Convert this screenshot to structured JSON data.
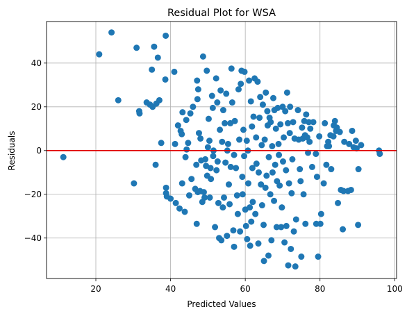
{
  "chart_data": {
    "type": "scatter",
    "title": "Residual Plot for WSA",
    "xlabel": "Predicted Values",
    "ylabel": "Residuals",
    "xlim": [
      6.8,
      100.5
    ],
    "ylim": [
      -58.5,
      59
    ],
    "xticks": [
      20,
      40,
      60,
      80,
      100
    ],
    "yticks": [
      -40,
      -20,
      0,
      20,
      40
    ],
    "grid": true,
    "legend": "none",
    "series_color": "#1f77b4",
    "reference_line": {
      "y": 0,
      "color": "#e00000"
    },
    "points": [
      [
        11.3,
        -3
      ],
      [
        20.9,
        44
      ],
      [
        24.2,
        54
      ],
      [
        26,
        23
      ],
      [
        30.2,
        -15
      ],
      [
        30.9,
        47
      ],
      [
        31.6,
        18
      ],
      [
        31.7,
        17
      ],
      [
        33.6,
        22
      ],
      [
        34.5,
        21
      ],
      [
        35,
        37
      ],
      [
        35.2,
        20
      ],
      [
        35.6,
        47.5
      ],
      [
        36,
        -6.5
      ],
      [
        36.2,
        21.5
      ],
      [
        36.6,
        42.5
      ],
      [
        37,
        23
      ],
      [
        37.5,
        3.5
      ],
      [
        38.6,
        32.5
      ],
      [
        38.7,
        52.5
      ],
      [
        38.8,
        -17
      ],
      [
        38.8,
        -19.5
      ],
      [
        39,
        -21
      ],
      [
        40,
        -22
      ],
      [
        41,
        36
      ],
      [
        41.2,
        3
      ],
      [
        41.4,
        -24
      ],
      [
        42,
        11.5
      ],
      [
        42.4,
        -26.5
      ],
      [
        42.7,
        9
      ],
      [
        43,
        7.5
      ],
      [
        43.1,
        -15
      ],
      [
        43.2,
        17.5
      ],
      [
        43.8,
        -28
      ],
      [
        44,
        -3
      ],
      [
        44.2,
        14
      ],
      [
        44.3,
        0.5
      ],
      [
        44.7,
        3.5
      ],
      [
        45,
        -20.5
      ],
      [
        45.3,
        17
      ],
      [
        45.6,
        -13
      ],
      [
        46,
        20
      ],
      [
        46.6,
        -17.5
      ],
      [
        46.9,
        -6.5
      ],
      [
        47,
        -33.5
      ],
      [
        47.1,
        32
      ],
      [
        47.2,
        23.5
      ],
      [
        47.3,
        -19
      ],
      [
        47.4,
        28
      ],
      [
        47.6,
        8
      ],
      [
        47.9,
        -18.5
      ],
      [
        48,
        5.5
      ],
      [
        48.2,
        -4.5
      ],
      [
        48.5,
        -23.5
      ],
      [
        48.7,
        43
      ],
      [
        48.9,
        -19
      ],
      [
        49.1,
        -21.5
      ],
      [
        49.3,
        -4
      ],
      [
        49.5,
        -7
      ],
      [
        49.7,
        36.5
      ],
      [
        49.8,
        -11.5
      ],
      [
        50,
        1.5
      ],
      [
        50.2,
        14.5
      ],
      [
        50.4,
        4.5
      ],
      [
        50.5,
        -21.5
      ],
      [
        50.7,
        -8
      ],
      [
        50.8,
        -13
      ],
      [
        51.1,
        25
      ],
      [
        51.3,
        19.5
      ],
      [
        51.4,
        -2.5
      ],
      [
        51.5,
        0
      ],
      [
        51.9,
        -35
      ],
      [
        52.2,
        33
      ],
      [
        52.3,
        -9
      ],
      [
        52.5,
        22
      ],
      [
        52.6,
        -5
      ],
      [
        52.8,
        -24
      ],
      [
        53,
        -40
      ],
      [
        53.2,
        9.5
      ],
      [
        53.4,
        27.5
      ],
      [
        53.6,
        -41
      ],
      [
        53.8,
        4
      ],
      [
        54,
        -26
      ],
      [
        54.1,
        18.5
      ],
      [
        54.3,
        -21.5
      ],
      [
        54.5,
        12.5
      ],
      [
        54.7,
        -5.5
      ],
      [
        54.9,
        26
      ],
      [
        55.1,
        -39
      ],
      [
        55.2,
        0
      ],
      [
        55.4,
        3
      ],
      [
        55.6,
        -15.5
      ],
      [
        55.8,
        -24.5
      ],
      [
        56,
        12.5
      ],
      [
        56.1,
        -7.5
      ],
      [
        56.3,
        37.5
      ],
      [
        56.5,
        22
      ],
      [
        56.8,
        -36.5
      ],
      [
        57,
        -2
      ],
      [
        57,
        -44
      ],
      [
        57.2,
        13.5
      ],
      [
        57.5,
        -8
      ],
      [
        57.8,
        -20.5
      ],
      [
        58,
        -29
      ],
      [
        58.2,
        28
      ],
      [
        58.4,
        5
      ],
      [
        58.6,
        -37
      ],
      [
        58.8,
        30.5
      ],
      [
        59,
        36.5
      ],
      [
        59.2,
        -12
      ],
      [
        59.3,
        -20
      ],
      [
        59.5,
        9.5
      ],
      [
        59.7,
        -2.5
      ],
      [
        59.8,
        36
      ],
      [
        60,
        -27
      ],
      [
        60.2,
        -34.5
      ],
      [
        60.4,
        4.5
      ],
      [
        60.5,
        -40.5
      ],
      [
        60.7,
        0
      ],
      [
        60.8,
        -15
      ],
      [
        61,
        32
      ],
      [
        61.2,
        -26
      ],
      [
        61.3,
        -43.5
      ],
      [
        61.5,
        22.5
      ],
      [
        61.6,
        -32.5
      ],
      [
        61.8,
        11
      ],
      [
        61.9,
        -8
      ],
      [
        62,
        -23.5
      ],
      [
        62.2,
        15.5
      ],
      [
        62.5,
        33
      ],
      [
        62.7,
        -29
      ],
      [
        62.9,
        6
      ],
      [
        63,
        -6
      ],
      [
        63.3,
        31.5
      ],
      [
        63.5,
        -42.5
      ],
      [
        63.6,
        -10
      ],
      [
        63.8,
        15
      ],
      [
        64,
        24.5
      ],
      [
        64.2,
        -15.5
      ],
      [
        64.4,
        2.5
      ],
      [
        64.5,
        -25
      ],
      [
        64.7,
        21
      ],
      [
        64.9,
        -34
      ],
      [
        65,
        -50.5
      ],
      [
        65.2,
        5
      ],
      [
        65.4,
        -17
      ],
      [
        65.5,
        26.5
      ],
      [
        65.7,
        -11.5
      ],
      [
        65.9,
        18
      ],
      [
        66,
        11.5
      ],
      [
        66.2,
        -48
      ],
      [
        66.3,
        -3
      ],
      [
        66.5,
        15
      ],
      [
        66.7,
        -20
      ],
      [
        66.8,
        13
      ],
      [
        67,
        -41
      ],
      [
        67.2,
        2
      ],
      [
        67.3,
        -10
      ],
      [
        67.5,
        24
      ],
      [
        67.7,
        -23
      ],
      [
        67.8,
        18.5
      ],
      [
        68,
        -6.5
      ],
      [
        68.2,
        10
      ],
      [
        68.4,
        -35
      ],
      [
        68.5,
        -14
      ],
      [
        68.7,
        19.5
      ],
      [
        68.9,
        3
      ],
      [
        69,
        -2
      ],
      [
        69.2,
        -16
      ],
      [
        69.4,
        12
      ],
      [
        69.6,
        -35
      ],
      [
        69.8,
        -26
      ],
      [
        70,
        20
      ],
      [
        70.1,
        -5
      ],
      [
        70.3,
        6
      ],
      [
        70.5,
        -42
      ],
      [
        70.7,
        18
      ],
      [
        70.9,
        -9
      ],
      [
        71,
        -34.5
      ],
      [
        71.2,
        26.5
      ],
      [
        71.4,
        12.5
      ],
      [
        71.5,
        -52.5
      ],
      [
        71.7,
        -15
      ],
      [
        71.9,
        8
      ],
      [
        72,
        20
      ],
      [
        72.2,
        -45
      ],
      [
        72.4,
        -19.5
      ],
      [
        72.6,
        -4
      ],
      [
        72.8,
        13
      ],
      [
        73,
        -37
      ],
      [
        73.2,
        5.5
      ],
      [
        73.4,
        -53
      ],
      [
        73.6,
        -31.5
      ],
      [
        74.1,
        18.5
      ],
      [
        74.3,
        5
      ],
      [
        74.6,
        -8.5
      ],
      [
        74.8,
        -14
      ],
      [
        75,
        -48.5
      ],
      [
        75.2,
        10.5
      ],
      [
        75.4,
        5.5
      ],
      [
        75.6,
        -20
      ],
      [
        75.8,
        13.5
      ],
      [
        76,
        7
      ],
      [
        76.1,
        -33.5
      ],
      [
        76.3,
        16.5
      ],
      [
        76.6,
        6
      ],
      [
        76.8,
        -1
      ],
      [
        77,
        13
      ],
      [
        77.2,
        4
      ],
      [
        77.4,
        10
      ],
      [
        77.9,
        -7.5
      ],
      [
        78.2,
        13
      ],
      [
        78.9,
        -1.5
      ],
      [
        79,
        -33.5
      ],
      [
        79.2,
        -12
      ],
      [
        79.5,
        -48.5
      ],
      [
        79.8,
        6.5
      ],
      [
        80.1,
        -33.5
      ],
      [
        80.3,
        -29
      ],
      [
        81,
        -15
      ],
      [
        81.3,
        12.5
      ],
      [
        81.7,
        -6.5
      ],
      [
        81.9,
        2
      ],
      [
        82.2,
        4
      ],
      [
        82.4,
        2
      ],
      [
        82.8,
        7
      ],
      [
        83,
        -8.5
      ],
      [
        83.6,
        6.5
      ],
      [
        83.7,
        11.5
      ],
      [
        84,
        13.5
      ],
      [
        84.3,
        9
      ],
      [
        84.5,
        10.5
      ],
      [
        84.8,
        -24
      ],
      [
        85.3,
        8.5
      ],
      [
        85.6,
        -18
      ],
      [
        86.1,
        -36
      ],
      [
        86.3,
        -18.5
      ],
      [
        86.5,
        4
      ],
      [
        87.5,
        -18.5
      ],
      [
        87.8,
        3
      ],
      [
        88.3,
        -18
      ],
      [
        88.6,
        9
      ],
      [
        89,
        1.5
      ],
      [
        89.6,
        4.5
      ],
      [
        89.8,
        1
      ],
      [
        90.2,
        -34
      ],
      [
        90.3,
        -8.5
      ],
      [
        91,
        2.5
      ],
      [
        95.8,
        0
      ],
      [
        96,
        -1.5
      ]
    ]
  }
}
